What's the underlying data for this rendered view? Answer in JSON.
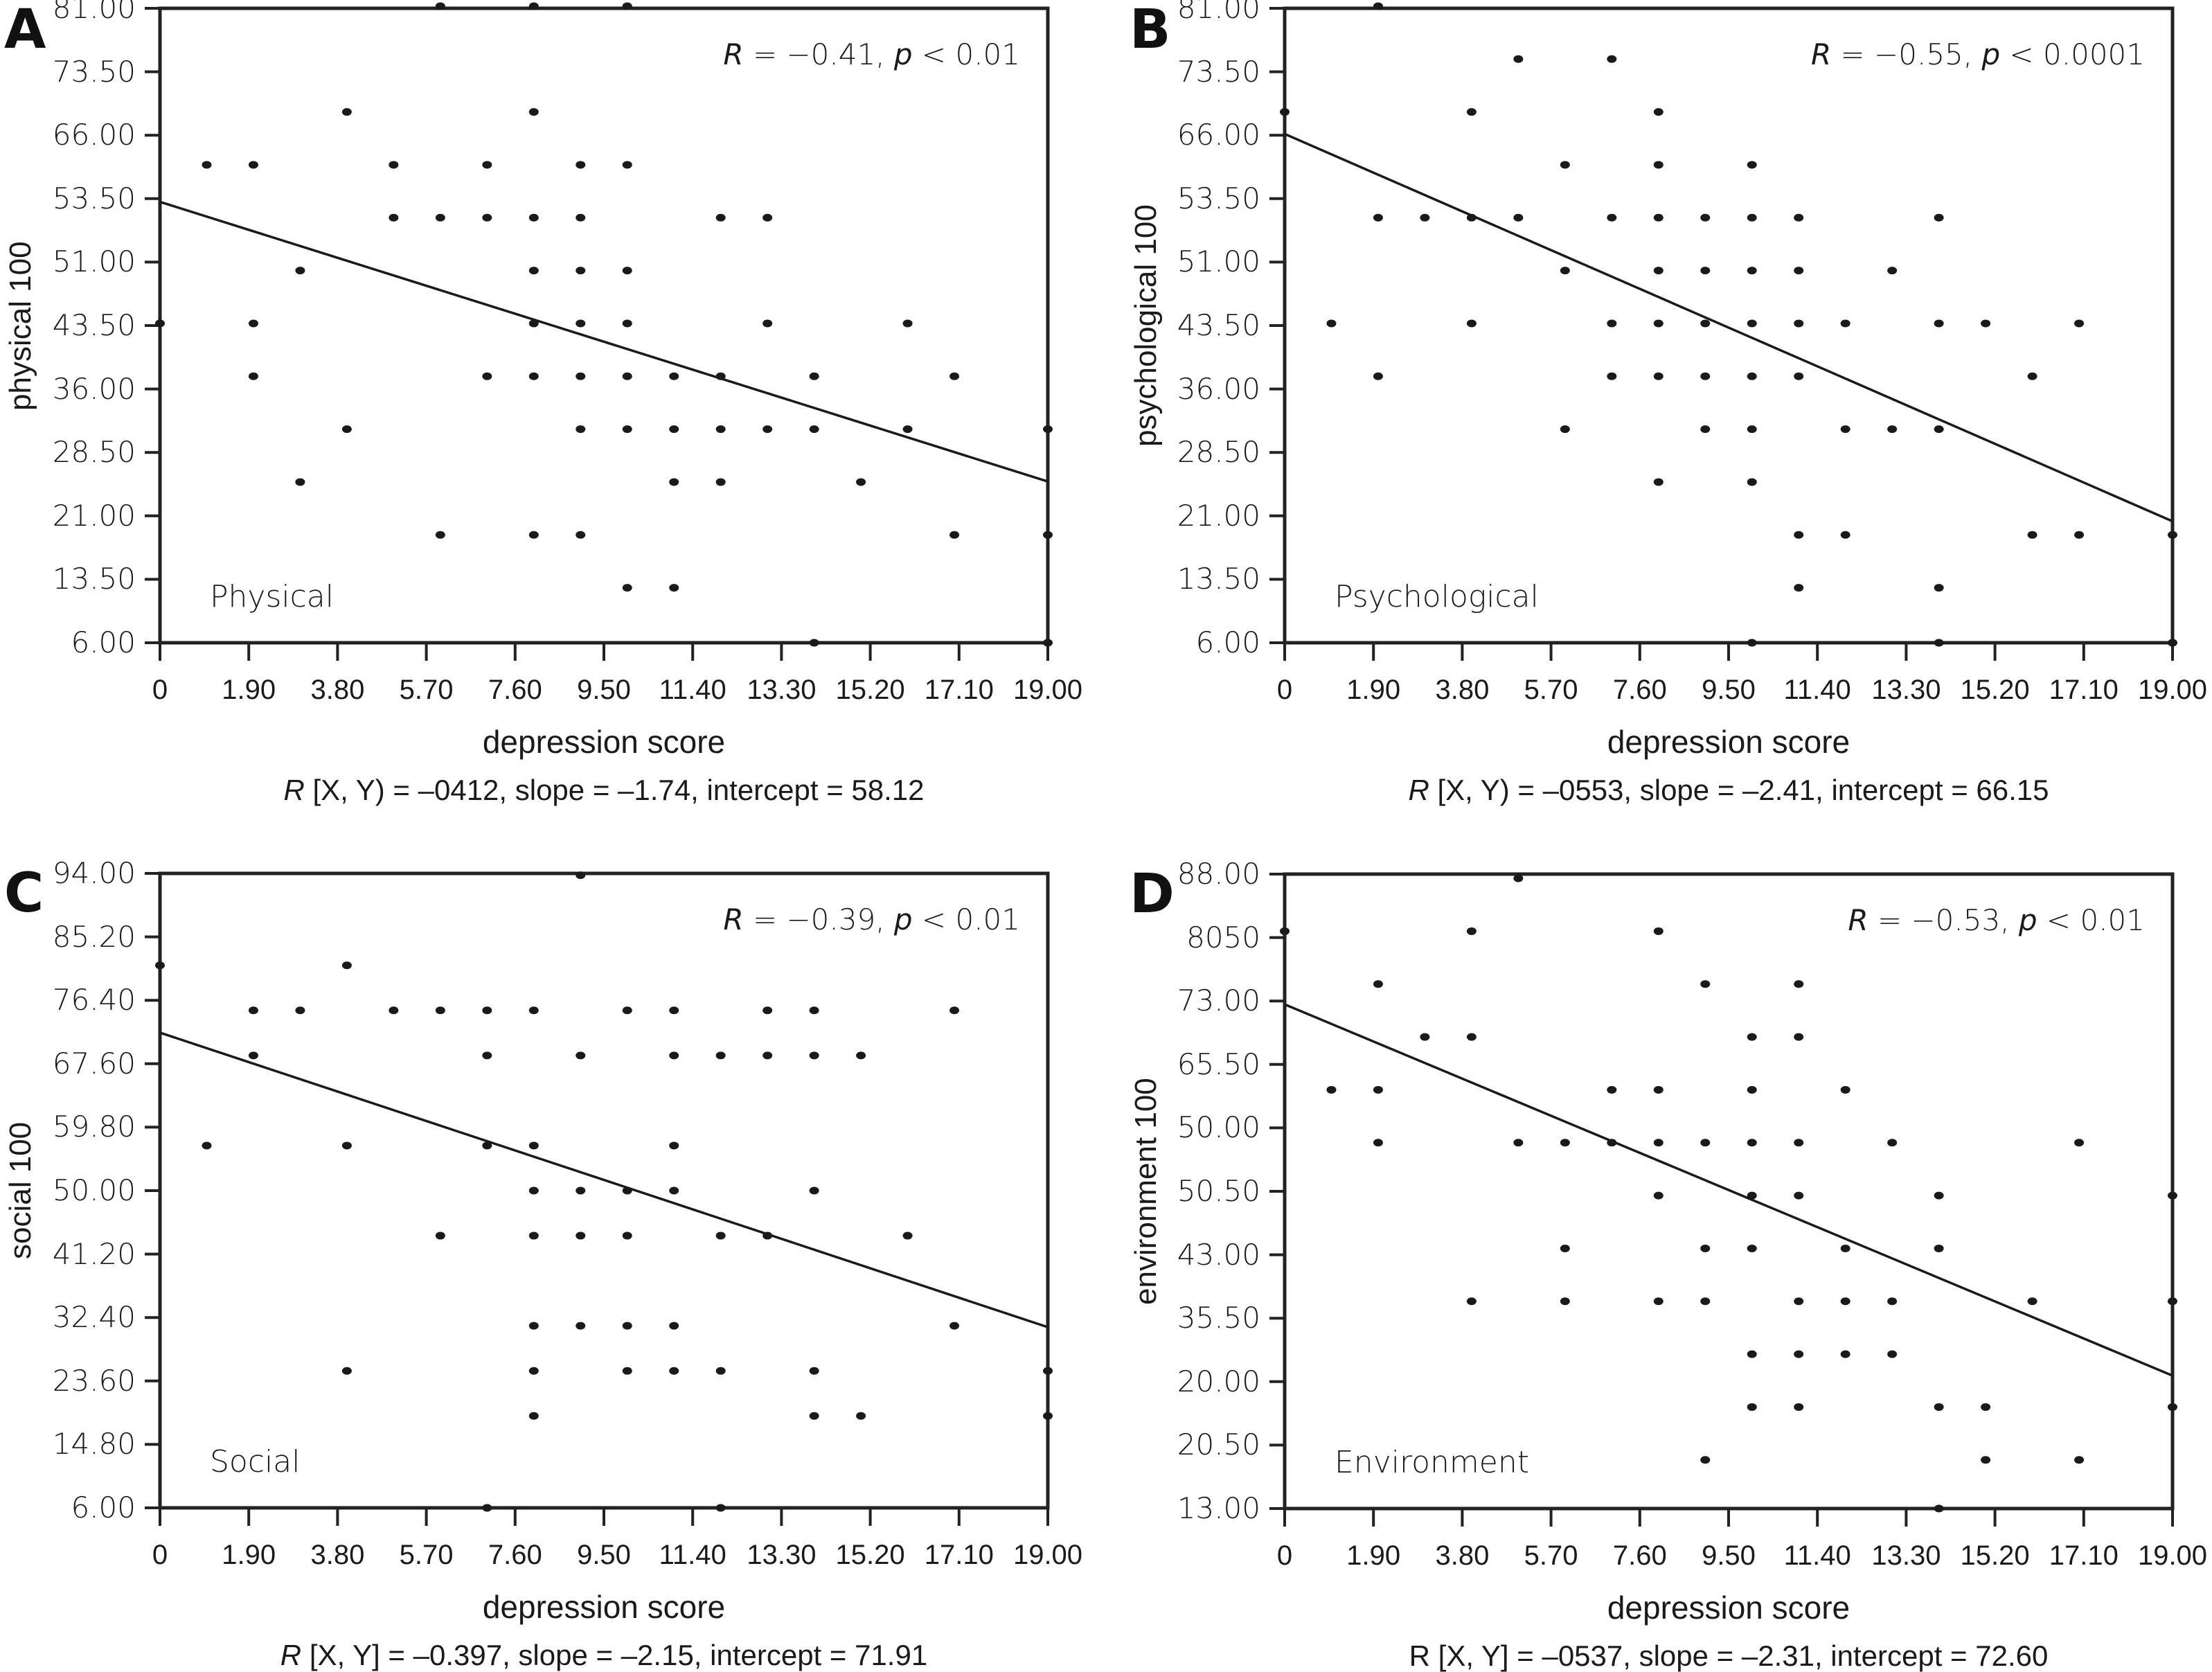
{
  "figure": {
    "x_tick_labels": [
      "0",
      "1.90",
      "3.80",
      "5.70",
      "7.60",
      "9.50",
      "11.40",
      "13.30",
      "15.20",
      "17.10",
      "19.00"
    ]
  },
  "chart_data": [
    {
      "type": "scatter",
      "panel": "A",
      "domain_label": "Physical",
      "xlabel": "depression score",
      "ylabel": "physical 100",
      "xlim": [
        0,
        19
      ],
      "ylim": [
        6,
        81
      ],
      "x_ticks": [
        "0",
        "1.90",
        "3.80",
        "5.70",
        "7.60",
        "9.50",
        "11.40",
        "13.30",
        "15.20",
        "17.10",
        "19.00"
      ],
      "y_ticks": [
        "6.00",
        "13.50",
        "21.00",
        "28.50",
        "36.00",
        "43.50",
        "51.00",
        "53.50",
        "66.00",
        "73.50",
        "81.00"
      ],
      "grid": false,
      "stat_annotation": {
        "r_symbol": "R",
        "r_text": " = −0.41, ",
        "p_symbol": "p",
        "p_text": " < 0.01"
      },
      "caption": {
        "r_symbol": "R",
        "text": " [X, Y) = –0412, slope = –1.74, intercept = 58.12"
      },
      "regression": {
        "slope": -1.74,
        "intercept": 58.12
      },
      "points": [
        [
          0,
          43.75
        ],
        [
          1,
          62.5
        ],
        [
          2,
          62.5
        ],
        [
          2,
          43.75
        ],
        [
          2,
          37.5
        ],
        [
          3,
          50
        ],
        [
          3,
          25
        ],
        [
          4,
          68.75
        ],
        [
          4,
          31.25
        ],
        [
          5,
          62.5
        ],
        [
          5,
          56.25
        ],
        [
          6,
          81.25
        ],
        [
          6,
          56.25
        ],
        [
          6,
          18.75
        ],
        [
          7,
          62.5
        ],
        [
          7,
          56.25
        ],
        [
          7,
          37.5
        ],
        [
          8,
          81.25
        ],
        [
          8,
          68.75
        ],
        [
          8,
          56.25
        ],
        [
          8,
          50
        ],
        [
          8,
          43.75
        ],
        [
          8,
          37.5
        ],
        [
          8,
          18.75
        ],
        [
          9,
          62.5
        ],
        [
          9,
          56.25
        ],
        [
          9,
          50
        ],
        [
          9,
          43.75
        ],
        [
          9,
          37.5
        ],
        [
          9,
          31.25
        ],
        [
          9,
          18.75
        ],
        [
          10,
          81.25
        ],
        [
          10,
          62.5
        ],
        [
          10,
          50
        ],
        [
          10,
          43.75
        ],
        [
          10,
          37.5
        ],
        [
          10,
          31.25
        ],
        [
          10,
          12.5
        ],
        [
          11,
          37.5
        ],
        [
          11,
          31.25
        ],
        [
          11,
          25
        ],
        [
          11,
          12.5
        ],
        [
          12,
          56.25
        ],
        [
          12,
          37.5
        ],
        [
          12,
          31.25
        ],
        [
          12,
          25
        ],
        [
          13,
          56.25
        ],
        [
          13,
          43.75
        ],
        [
          13,
          31.25
        ],
        [
          14,
          37.5
        ],
        [
          14,
          31.25
        ],
        [
          14,
          6
        ],
        [
          15,
          25
        ],
        [
          16,
          43.75
        ],
        [
          16,
          31.25
        ],
        [
          17,
          37.5
        ],
        [
          17,
          18.75
        ],
        [
          19,
          31.25
        ],
        [
          19,
          18.75
        ],
        [
          19,
          6
        ]
      ]
    },
    {
      "type": "scatter",
      "panel": "B",
      "domain_label": "Psychological",
      "xlabel": "depression score",
      "ylabel": "psychological 100",
      "xlim": [
        0,
        19
      ],
      "ylim": [
        6,
        81
      ],
      "x_ticks": [
        "0",
        "1.90",
        "3.80",
        "5.70",
        "7.60",
        "9.50",
        "11.40",
        "13.30",
        "15.20",
        "17.10",
        "19.00"
      ],
      "y_ticks": [
        "6.00",
        "13.50",
        "21.00",
        "28.50",
        "36.00",
        "43.50",
        "51.00",
        "53.50",
        "66.00",
        "73.50",
        "81.00"
      ],
      "grid": false,
      "stat_annotation": {
        "r_symbol": "R",
        "r_text": " = −0.55, ",
        "p_symbol": "p",
        "p_text": " < 0.0001"
      },
      "caption": {
        "r_symbol": "R",
        "text": " [X, Y) = –0553, slope = –2.41, intercept = 66.15"
      },
      "regression": {
        "slope": -2.41,
        "intercept": 66.15
      },
      "points": [
        [
          0,
          68.75
        ],
        [
          1,
          43.75
        ],
        [
          2,
          81.25
        ],
        [
          2,
          56.25
        ],
        [
          2,
          37.5
        ],
        [
          3,
          56.25
        ],
        [
          4,
          68.75
        ],
        [
          4,
          56.25
        ],
        [
          4,
          43.75
        ],
        [
          5,
          75
        ],
        [
          5,
          56.25
        ],
        [
          6,
          62.5
        ],
        [
          6,
          50
        ],
        [
          6,
          31.25
        ],
        [
          7,
          75
        ],
        [
          7,
          56.25
        ],
        [
          7,
          43.75
        ],
        [
          7,
          37.5
        ],
        [
          8,
          68.75
        ],
        [
          8,
          62.5
        ],
        [
          8,
          56.25
        ],
        [
          8,
          50
        ],
        [
          8,
          43.75
        ],
        [
          8,
          37.5
        ],
        [
          8,
          25
        ],
        [
          9,
          56.25
        ],
        [
          9,
          50
        ],
        [
          9,
          43.75
        ],
        [
          9,
          37.5
        ],
        [
          9,
          31.25
        ],
        [
          10,
          62.5
        ],
        [
          10,
          56.25
        ],
        [
          10,
          50
        ],
        [
          10,
          43.75
        ],
        [
          10,
          37.5
        ],
        [
          10,
          31.25
        ],
        [
          10,
          25
        ],
        [
          10,
          6
        ],
        [
          11,
          56.25
        ],
        [
          11,
          50
        ],
        [
          11,
          43.75
        ],
        [
          11,
          37.5
        ],
        [
          11,
          18.75
        ],
        [
          11,
          12.5
        ],
        [
          12,
          43.75
        ],
        [
          12,
          31.25
        ],
        [
          12,
          18.75
        ],
        [
          13,
          50
        ],
        [
          13,
          31.25
        ],
        [
          14,
          56.25
        ],
        [
          14,
          43.75
        ],
        [
          14,
          31.25
        ],
        [
          14,
          12.5
        ],
        [
          14,
          6
        ],
        [
          15,
          43.75
        ],
        [
          16,
          37.5
        ],
        [
          16,
          18.75
        ],
        [
          17,
          43.75
        ],
        [
          17,
          18.75
        ],
        [
          19,
          18.75
        ],
        [
          19,
          6
        ]
      ]
    },
    {
      "type": "scatter",
      "panel": "C",
      "domain_label": "Social",
      "xlabel": "depression score",
      "ylabel": "social 100",
      "xlim": [
        0,
        19
      ],
      "ylim": [
        6,
        94
      ],
      "x_ticks": [
        "0",
        "1.90",
        "3.80",
        "5.70",
        "7.60",
        "9.50",
        "11.40",
        "13.30",
        "15.20",
        "17.10",
        "19.00"
      ],
      "y_ticks": [
        "6.00",
        "14.80",
        "23.60",
        "32.40",
        "41.20",
        "50.00",
        "59.80",
        "67.60",
        "76.40",
        "85.20",
        "94.00"
      ],
      "grid": false,
      "stat_annotation": {
        "r_symbol": "R",
        "r_text": " = −0.39, ",
        "p_symbol": "p",
        "p_text": " < 0.01"
      },
      "caption": {
        "r_symbol": "R",
        "text": " [X, Y] = –0.397, slope = –2.15, intercept = 71.91"
      },
      "regression": {
        "slope": -2.15,
        "intercept": 71.91
      },
      "points": [
        [
          0,
          81.25
        ],
        [
          1,
          56.25
        ],
        [
          2,
          75
        ],
        [
          2,
          68.75
        ],
        [
          3,
          75
        ],
        [
          4,
          81.25
        ],
        [
          4,
          56.25
        ],
        [
          4,
          25
        ],
        [
          5,
          75
        ],
        [
          6,
          75
        ],
        [
          6,
          43.75
        ],
        [
          7,
          75
        ],
        [
          7,
          68.75
        ],
        [
          7,
          56.25
        ],
        [
          7,
          6
        ],
        [
          8,
          75
        ],
        [
          8,
          56.25
        ],
        [
          8,
          50
        ],
        [
          8,
          43.75
        ],
        [
          8,
          31.25
        ],
        [
          8,
          25
        ],
        [
          8,
          18.75
        ],
        [
          9,
          93.75
        ],
        [
          9,
          68.75
        ],
        [
          9,
          50
        ],
        [
          9,
          43.75
        ],
        [
          9,
          31.25
        ],
        [
          10,
          75
        ],
        [
          10,
          50
        ],
        [
          10,
          43.75
        ],
        [
          10,
          31.25
        ],
        [
          10,
          25
        ],
        [
          11,
          75
        ],
        [
          11,
          68.75
        ],
        [
          11,
          56.25
        ],
        [
          11,
          50
        ],
        [
          11,
          31.25
        ],
        [
          11,
          25
        ],
        [
          12,
          68.75
        ],
        [
          12,
          43.75
        ],
        [
          12,
          25
        ],
        [
          12,
          6
        ],
        [
          13,
          75
        ],
        [
          13,
          68.75
        ],
        [
          13,
          43.75
        ],
        [
          14,
          75
        ],
        [
          14,
          68.75
        ],
        [
          14,
          50
        ],
        [
          14,
          25
        ],
        [
          14,
          18.75
        ],
        [
          15,
          68.75
        ],
        [
          15,
          18.75
        ],
        [
          16,
          43.75
        ],
        [
          17,
          75
        ],
        [
          17,
          31.25
        ],
        [
          19,
          25
        ],
        [
          19,
          18.75
        ]
      ]
    },
    {
      "type": "scatter",
      "panel": "D",
      "domain_label": "Environment",
      "xlabel": "depression score",
      "ylabel": "environment 100",
      "xlim": [
        0,
        19
      ],
      "ylim": [
        13,
        88
      ],
      "x_ticks": [
        "0",
        "1.90",
        "3.80",
        "5.70",
        "7.60",
        "9.50",
        "11.40",
        "13.30",
        "15.20",
        "17.10",
        "19.00"
      ],
      "y_ticks": [
        "13.00",
        "20.50",
        "20.00",
        "35.50",
        "43.00",
        "50.50",
        "50.00",
        "65.50",
        "73.00",
        "8050",
        "88.00"
      ],
      "grid": false,
      "stat_annotation": {
        "r_symbol": "R",
        "r_text": " = −0.53, ",
        "p_symbol": "p",
        "p_text": " < 0.01"
      },
      "caption": {
        "r_symbol": "R",
        "text": " [X, Y] = –0537, slope = –2.31, intercept = 72.60"
      },
      "regression": {
        "slope": -2.31,
        "intercept": 72.6
      },
      "points": [
        [
          0,
          81.25
        ],
        [
          1,
          62.5
        ],
        [
          2,
          75
        ],
        [
          2,
          62.5
        ],
        [
          2,
          56.25
        ],
        [
          3,
          68.75
        ],
        [
          4,
          81.25
        ],
        [
          4,
          68.75
        ],
        [
          4,
          37.5
        ],
        [
          5,
          87.5
        ],
        [
          5,
          56.25
        ],
        [
          6,
          56.25
        ],
        [
          6,
          43.75
        ],
        [
          6,
          37.5
        ],
        [
          7,
          62.5
        ],
        [
          7,
          56.25
        ],
        [
          8,
          81.25
        ],
        [
          8,
          62.5
        ],
        [
          8,
          56.25
        ],
        [
          8,
          50
        ],
        [
          8,
          37.5
        ],
        [
          9,
          75
        ],
        [
          9,
          56.25
        ],
        [
          9,
          43.75
        ],
        [
          9,
          37.5
        ],
        [
          9,
          18.75
        ],
        [
          10,
          68.75
        ],
        [
          10,
          62.5
        ],
        [
          10,
          56.25
        ],
        [
          10,
          50
        ],
        [
          10,
          43.75
        ],
        [
          10,
          31.25
        ],
        [
          10,
          25
        ],
        [
          11,
          75
        ],
        [
          11,
          68.75
        ],
        [
          11,
          56.25
        ],
        [
          11,
          50
        ],
        [
          11,
          37.5
        ],
        [
          11,
          31.25
        ],
        [
          11,
          25
        ],
        [
          12,
          62.5
        ],
        [
          12,
          43.75
        ],
        [
          12,
          37.5
        ],
        [
          12,
          31.25
        ],
        [
          13,
          56.25
        ],
        [
          13,
          37.5
        ],
        [
          13,
          31.25
        ],
        [
          14,
          50
        ],
        [
          14,
          43.75
        ],
        [
          14,
          25
        ],
        [
          14,
          13
        ],
        [
          15,
          25
        ],
        [
          15,
          18.75
        ],
        [
          16,
          37.5
        ],
        [
          17,
          56.25
        ],
        [
          17,
          18.75
        ],
        [
          19,
          50
        ],
        [
          19,
          37.5
        ],
        [
          19,
          25
        ]
      ]
    }
  ]
}
